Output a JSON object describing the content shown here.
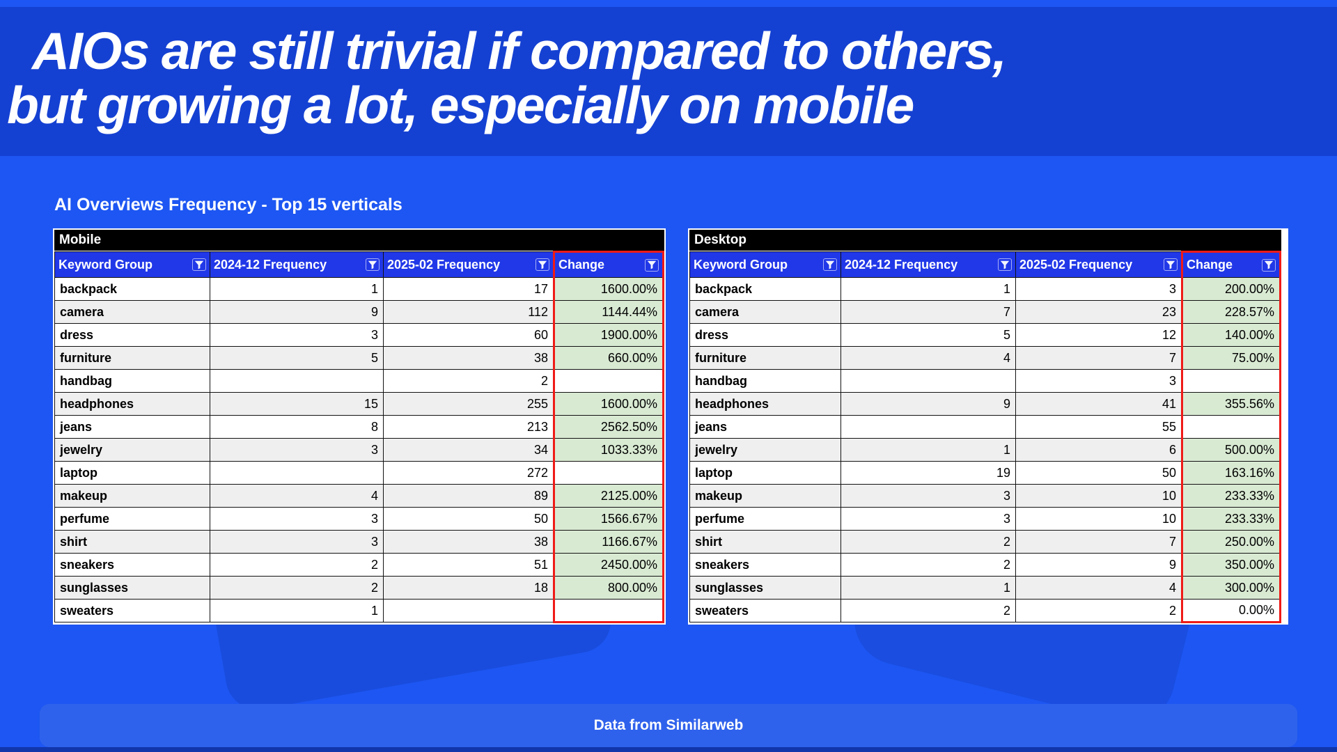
{
  "slide": {
    "title_line1": "AIOs are still trivial if compared to others,",
    "title_line2": "but growing a lot, especially on mobile",
    "section_title": "AI Overviews Frequency - Top 15 verticals",
    "footer_text": "Data from Similarweb"
  },
  "icons": {
    "header_filter": "filter-icon"
  },
  "colors": {
    "background": "#1d56f2",
    "banner": "#1541d2",
    "table_header": "#2138e8",
    "table_caption": "#000000",
    "row_alt": "#efefef",
    "change_highlight": "#d9ead3",
    "change_border": "#ef1b17",
    "footer_bar": "#2f62ec",
    "text_light": "#ffffff",
    "text_dark": "#000000"
  },
  "chart_data": [
    {
      "type": "table",
      "title": "Mobile",
      "columns": [
        "Keyword Group",
        "2024-12 Frequency",
        "2025-02 Frequency",
        "Change"
      ],
      "rows": [
        {
          "keyword": "backpack",
          "freq_2024_12": "1",
          "freq_2025_02": "17",
          "change": "1600.00%"
        },
        {
          "keyword": "camera",
          "freq_2024_12": "9",
          "freq_2025_02": "112",
          "change": "1144.44%"
        },
        {
          "keyword": "dress",
          "freq_2024_12": "3",
          "freq_2025_02": "60",
          "change": "1900.00%"
        },
        {
          "keyword": "furniture",
          "freq_2024_12": "5",
          "freq_2025_02": "38",
          "change": "660.00%"
        },
        {
          "keyword": "handbag",
          "freq_2024_12": "",
          "freq_2025_02": "2",
          "change": ""
        },
        {
          "keyword": "headphones",
          "freq_2024_12": "15",
          "freq_2025_02": "255",
          "change": "1600.00%"
        },
        {
          "keyword": "jeans",
          "freq_2024_12": "8",
          "freq_2025_02": "213",
          "change": "2562.50%"
        },
        {
          "keyword": "jewelry",
          "freq_2024_12": "3",
          "freq_2025_02": "34",
          "change": "1033.33%"
        },
        {
          "keyword": "laptop",
          "freq_2024_12": "",
          "freq_2025_02": "272",
          "change": ""
        },
        {
          "keyword": "makeup",
          "freq_2024_12": "4",
          "freq_2025_02": "89",
          "change": "2125.00%"
        },
        {
          "keyword": "perfume",
          "freq_2024_12": "3",
          "freq_2025_02": "50",
          "change": "1566.67%"
        },
        {
          "keyword": "shirt",
          "freq_2024_12": "3",
          "freq_2025_02": "38",
          "change": "1166.67%"
        },
        {
          "keyword": "sneakers",
          "freq_2024_12": "2",
          "freq_2025_02": "51",
          "change": "2450.00%"
        },
        {
          "keyword": "sunglasses",
          "freq_2024_12": "2",
          "freq_2025_02": "18",
          "change": "800.00%"
        },
        {
          "keyword": "sweaters",
          "freq_2024_12": "1",
          "freq_2025_02": "",
          "change": ""
        }
      ]
    },
    {
      "type": "table",
      "title": "Desktop",
      "columns": [
        "Keyword Group",
        "2024-12 Frequency",
        "2025-02 Frequency",
        "Change"
      ],
      "rows": [
        {
          "keyword": "backpack",
          "freq_2024_12": "1",
          "freq_2025_02": "3",
          "change": "200.00%"
        },
        {
          "keyword": "camera",
          "freq_2024_12": "7",
          "freq_2025_02": "23",
          "change": "228.57%"
        },
        {
          "keyword": "dress",
          "freq_2024_12": "5",
          "freq_2025_02": "12",
          "change": "140.00%"
        },
        {
          "keyword": "furniture",
          "freq_2024_12": "4",
          "freq_2025_02": "7",
          "change": "75.00%"
        },
        {
          "keyword": "handbag",
          "freq_2024_12": "",
          "freq_2025_02": "3",
          "change": ""
        },
        {
          "keyword": "headphones",
          "freq_2024_12": "9",
          "freq_2025_02": "41",
          "change": "355.56%"
        },
        {
          "keyword": "jeans",
          "freq_2024_12": "",
          "freq_2025_02": "55",
          "change": ""
        },
        {
          "keyword": "jewelry",
          "freq_2024_12": "1",
          "freq_2025_02": "6",
          "change": "500.00%"
        },
        {
          "keyword": "laptop",
          "freq_2024_12": "19",
          "freq_2025_02": "50",
          "change": "163.16%"
        },
        {
          "keyword": "makeup",
          "freq_2024_12": "3",
          "freq_2025_02": "10",
          "change": "233.33%"
        },
        {
          "keyword": "perfume",
          "freq_2024_12": "3",
          "freq_2025_02": "10",
          "change": "233.33%"
        },
        {
          "keyword": "shirt",
          "freq_2024_12": "2",
          "freq_2025_02": "7",
          "change": "250.00%"
        },
        {
          "keyword": "sneakers",
          "freq_2024_12": "2",
          "freq_2025_02": "9",
          "change": "350.00%"
        },
        {
          "keyword": "sunglasses",
          "freq_2024_12": "1",
          "freq_2025_02": "4",
          "change": "300.00%"
        },
        {
          "keyword": "sweaters",
          "freq_2024_12": "2",
          "freq_2025_02": "2",
          "change": "0.00%"
        }
      ]
    }
  ]
}
